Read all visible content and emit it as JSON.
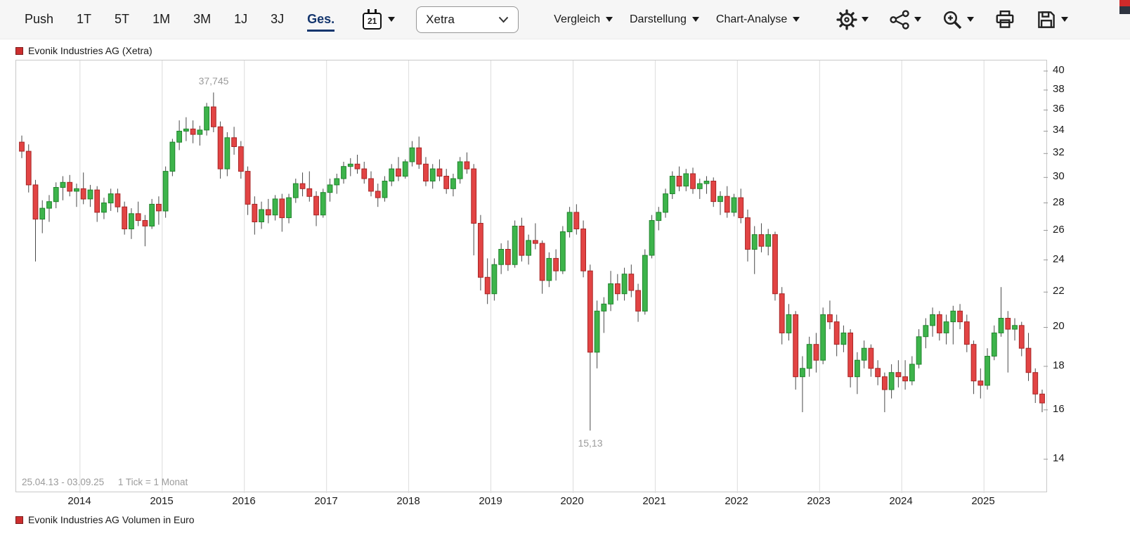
{
  "toolbar": {
    "push_label": "Push",
    "ranges": [
      {
        "label": "1T",
        "selected": false
      },
      {
        "label": "5T",
        "selected": false
      },
      {
        "label": "1M",
        "selected": false
      },
      {
        "label": "3M",
        "selected": false
      },
      {
        "label": "1J",
        "selected": false
      },
      {
        "label": "3J",
        "selected": false
      },
      {
        "label": "Ges.",
        "selected": true
      }
    ],
    "calendar_day": "21",
    "exchange_select": {
      "value": "Xetra"
    },
    "menus": [
      {
        "label": "Vergleich"
      },
      {
        "label": "Darstellung"
      },
      {
        "label": "Chart-Analyse"
      }
    ],
    "icon_buttons": [
      "gear-icon",
      "share-network-icon",
      "zoom-in-icon",
      "printer-icon",
      "save-icon"
    ]
  },
  "legend_top": "Evonik Industries AG (Xetra)",
  "legend_bottom": "Evonik Industries AG Volumen in Euro",
  "chart_footer": {
    "range_text": "25.04.13 - 03.09.25",
    "tick_text": "1 Tick = 1 Monat"
  },
  "colors": {
    "up": "#3db44b",
    "up_border": "#20842c",
    "down": "#e24444",
    "down_border": "#a82525",
    "wick": "#4a4a4a",
    "grid": "#dcdcdc",
    "accent": "#14366e",
    "legend_red": "#cc2e2e"
  },
  "chart_data": {
    "type": "candlestick",
    "instrument": "Evonik Industries AG",
    "exchange": "Xetra",
    "period": "25.04.13 - 03.09.25",
    "tick_interval": "1 Monat",
    "scale": "log",
    "x_start": "2013-04",
    "x_year_labels": [
      "2014",
      "2015",
      "2016",
      "2017",
      "2018",
      "2019",
      "2020",
      "2021",
      "2022",
      "2023",
      "2024",
      "2025"
    ],
    "y_ticks": [
      40,
      38,
      36,
      34,
      32,
      30,
      28,
      26,
      24,
      22,
      20,
      18,
      16,
      14
    ],
    "high_marker": {
      "month_index": 28,
      "value": 37.745,
      "label": "37,745"
    },
    "low_marker": {
      "month_index": 83,
      "value": 15.13,
      "label": "15,13"
    },
    "candles": [
      [
        33.0,
        33.6,
        31.6,
        32.2
      ],
      [
        32.2,
        32.8,
        28.8,
        29.4
      ],
      [
        29.4,
        29.8,
        23.9,
        26.8
      ],
      [
        26.8,
        28.2,
        25.8,
        27.6
      ],
      [
        27.6,
        28.6,
        26.6,
        28.1
      ],
      [
        28.1,
        29.6,
        27.6,
        29.2
      ],
      [
        29.2,
        30.1,
        28.2,
        29.6
      ],
      [
        29.6,
        30.2,
        28.5,
        28.9
      ],
      [
        28.9,
        29.5,
        27.7,
        29.1
      ],
      [
        29.1,
        30.4,
        27.9,
        28.3
      ],
      [
        28.3,
        29.4,
        27.7,
        29.0
      ],
      [
        29.0,
        29.3,
        26.6,
        27.3
      ],
      [
        27.3,
        28.4,
        26.8,
        28.0
      ],
      [
        28.0,
        29.1,
        27.4,
        28.7
      ],
      [
        28.7,
        29.1,
        27.3,
        27.7
      ],
      [
        27.7,
        28.1,
        25.7,
        26.1
      ],
      [
        26.1,
        27.6,
        25.4,
        27.2
      ],
      [
        27.2,
        28.1,
        26.3,
        26.7
      ],
      [
        26.7,
        27.1,
        24.9,
        26.3
      ],
      [
        26.3,
        28.3,
        26.1,
        27.9
      ],
      [
        27.9,
        28.5,
        26.4,
        27.4
      ],
      [
        27.4,
        30.9,
        26.9,
        30.5
      ],
      [
        30.5,
        33.3,
        30.1,
        33.0
      ],
      [
        33.0,
        35.0,
        32.3,
        34.0
      ],
      [
        34.0,
        35.3,
        33.1,
        34.2
      ],
      [
        34.2,
        35.0,
        32.9,
        33.7
      ],
      [
        33.7,
        34.5,
        32.7,
        34.1
      ],
      [
        34.1,
        36.7,
        33.6,
        36.3
      ],
      [
        36.3,
        37.745,
        33.9,
        34.4
      ],
      [
        34.4,
        34.9,
        29.9,
        30.7
      ],
      [
        30.7,
        33.9,
        30.1,
        33.4
      ],
      [
        33.4,
        34.4,
        31.9,
        32.6
      ],
      [
        32.6,
        33.1,
        29.9,
        30.5
      ],
      [
        30.5,
        30.9,
        27.1,
        27.9
      ],
      [
        27.9,
        28.5,
        25.7,
        26.6
      ],
      [
        26.6,
        28.1,
        26.1,
        27.5
      ],
      [
        27.5,
        28.3,
        26.5,
        27.1
      ],
      [
        27.1,
        28.6,
        26.7,
        28.3
      ],
      [
        28.3,
        28.7,
        25.9,
        26.9
      ],
      [
        26.9,
        28.7,
        26.5,
        28.4
      ],
      [
        28.4,
        29.9,
        28.0,
        29.5
      ],
      [
        29.5,
        30.4,
        28.5,
        29.1
      ],
      [
        29.1,
        30.5,
        28.1,
        28.5
      ],
      [
        28.5,
        28.9,
        26.3,
        27.1
      ],
      [
        27.1,
        29.1,
        26.9,
        28.8
      ],
      [
        28.8,
        29.9,
        28.1,
        29.4
      ],
      [
        29.4,
        30.3,
        28.7,
        29.9
      ],
      [
        29.9,
        31.3,
        29.5,
        30.9
      ],
      [
        30.9,
        31.6,
        30.1,
        31.1
      ],
      [
        31.1,
        31.9,
        30.3,
        30.7
      ],
      [
        30.7,
        31.3,
        29.5,
        29.9
      ],
      [
        29.9,
        30.5,
        28.5,
        28.9
      ],
      [
        28.9,
        29.5,
        27.7,
        28.4
      ],
      [
        28.4,
        30.1,
        28.1,
        29.7
      ],
      [
        29.7,
        31.1,
        29.3,
        30.7
      ],
      [
        30.7,
        31.7,
        29.7,
        30.1
      ],
      [
        30.1,
        31.5,
        29.9,
        31.3
      ],
      [
        31.3,
        33.1,
        30.9,
        32.5
      ],
      [
        32.5,
        33.5,
        30.7,
        31.1
      ],
      [
        31.1,
        31.7,
        29.3,
        29.7
      ],
      [
        29.7,
        31.1,
        29.1,
        30.7
      ],
      [
        30.7,
        31.5,
        29.7,
        30.1
      ],
      [
        30.1,
        30.7,
        28.7,
        29.1
      ],
      [
        29.1,
        30.3,
        28.5,
        29.9
      ],
      [
        29.9,
        31.7,
        29.5,
        31.3
      ],
      [
        31.3,
        32.1,
        30.3,
        30.7
      ],
      [
        30.7,
        31.1,
        24.3,
        26.5
      ],
      [
        26.5,
        27.1,
        22.1,
        22.9
      ],
      [
        22.9,
        24.1,
        21.3,
        21.9
      ],
      [
        21.9,
        24.1,
        21.5,
        23.7
      ],
      [
        23.7,
        25.1,
        23.1,
        24.7
      ],
      [
        24.7,
        25.3,
        23.3,
        23.7
      ],
      [
        23.7,
        26.7,
        23.5,
        26.3
      ],
      [
        26.3,
        26.9,
        23.9,
        24.3
      ],
      [
        24.3,
        25.7,
        23.7,
        25.3
      ],
      [
        25.3,
        26.5,
        24.7,
        25.1
      ],
      [
        25.1,
        25.3,
        21.9,
        22.7
      ],
      [
        22.7,
        24.5,
        22.3,
        24.1
      ],
      [
        24.1,
        24.7,
        22.7,
        23.3
      ],
      [
        23.3,
        26.3,
        23.1,
        25.9
      ],
      [
        25.9,
        27.7,
        25.5,
        27.3
      ],
      [
        27.3,
        27.9,
        25.7,
        26.1
      ],
      [
        26.1,
        26.7,
        22.9,
        23.3
      ],
      [
        23.3,
        23.7,
        15.13,
        18.7
      ],
      [
        18.7,
        21.5,
        17.9,
        20.9
      ],
      [
        20.9,
        21.7,
        19.7,
        21.3
      ],
      [
        21.3,
        23.3,
        20.9,
        22.5
      ],
      [
        22.5,
        23.1,
        21.5,
        21.9
      ],
      [
        21.9,
        23.5,
        21.5,
        23.1
      ],
      [
        23.1,
        23.7,
        21.7,
        22.1
      ],
      [
        22.1,
        22.5,
        20.3,
        20.9
      ],
      [
        20.9,
        24.7,
        20.7,
        24.3
      ],
      [
        24.3,
        27.1,
        24.1,
        26.7
      ],
      [
        26.7,
        27.7,
        26.0,
        27.3
      ],
      [
        27.3,
        29.1,
        26.9,
        28.7
      ],
      [
        28.7,
        30.5,
        28.3,
        30.1
      ],
      [
        30.1,
        30.9,
        28.9,
        29.3
      ],
      [
        29.3,
        30.7,
        28.9,
        30.3
      ],
      [
        30.3,
        30.8,
        28.7,
        29.1
      ],
      [
        29.1,
        29.9,
        28.3,
        29.5
      ],
      [
        29.5,
        30.1,
        28.7,
        29.7
      ],
      [
        29.7,
        30.0,
        27.7,
        28.1
      ],
      [
        28.1,
        28.9,
        27.1,
        28.5
      ],
      [
        28.5,
        29.3,
        26.9,
        27.3
      ],
      [
        27.3,
        28.7,
        27.0,
        28.4
      ],
      [
        28.4,
        29.1,
        26.5,
        26.9
      ],
      [
        26.9,
        27.5,
        23.9,
        24.7
      ],
      [
        24.7,
        26.3,
        23.1,
        25.7
      ],
      [
        25.7,
        26.5,
        24.5,
        24.9
      ],
      [
        24.9,
        26.1,
        24.3,
        25.7
      ],
      [
        25.7,
        25.9,
        21.5,
        21.9
      ],
      [
        21.9,
        22.3,
        19.1,
        19.7
      ],
      [
        19.7,
        21.3,
        19.3,
        20.7
      ],
      [
        20.7,
        20.9,
        16.9,
        17.5
      ],
      [
        17.5,
        18.5,
        15.9,
        17.9
      ],
      [
        17.9,
        19.5,
        17.5,
        19.1
      ],
      [
        19.1,
        19.7,
        17.7,
        18.3
      ],
      [
        18.3,
        21.1,
        18.1,
        20.7
      ],
      [
        20.7,
        21.5,
        19.9,
        20.3
      ],
      [
        20.3,
        20.7,
        18.5,
        19.1
      ],
      [
        19.1,
        20.1,
        18.7,
        19.7
      ],
      [
        19.7,
        19.9,
        17.0,
        17.5
      ],
      [
        17.5,
        18.7,
        16.7,
        18.3
      ],
      [
        18.3,
        19.3,
        17.9,
        18.9
      ],
      [
        18.9,
        19.1,
        17.5,
        17.9
      ],
      [
        17.9,
        18.3,
        17.1,
        17.5
      ],
      [
        17.5,
        17.7,
        15.9,
        16.9
      ],
      [
        16.9,
        18.1,
        16.5,
        17.7
      ],
      [
        17.7,
        18.3,
        17.0,
        17.5
      ],
      [
        17.5,
        18.3,
        16.9,
        17.3
      ],
      [
        17.3,
        18.5,
        17.1,
        18.1
      ],
      [
        18.1,
        19.9,
        17.9,
        19.5
      ],
      [
        19.5,
        20.5,
        18.9,
        20.1
      ],
      [
        20.1,
        21.1,
        19.5,
        20.7
      ],
      [
        20.7,
        20.9,
        19.3,
        19.7
      ],
      [
        19.7,
        20.7,
        19.1,
        20.3
      ],
      [
        20.3,
        21.2,
        19.1,
        20.9
      ],
      [
        20.9,
        21.3,
        19.9,
        20.3
      ],
      [
        20.3,
        20.7,
        18.7,
        19.1
      ],
      [
        19.1,
        19.3,
        16.7,
        17.3
      ],
      [
        17.3,
        17.9,
        16.5,
        17.1
      ],
      [
        17.1,
        18.9,
        16.9,
        18.5
      ],
      [
        18.5,
        20.1,
        18.3,
        19.7
      ],
      [
        19.7,
        22.3,
        19.5,
        20.5
      ],
      [
        20.5,
        20.9,
        17.7,
        19.9
      ],
      [
        19.9,
        20.5,
        19.3,
        20.1
      ],
      [
        20.1,
        20.3,
        18.5,
        18.9
      ],
      [
        18.9,
        19.7,
        17.3,
        17.7
      ],
      [
        17.7,
        17.9,
        16.3,
        16.7
      ],
      [
        16.7,
        16.9,
        15.9,
        16.3
      ]
    ]
  }
}
